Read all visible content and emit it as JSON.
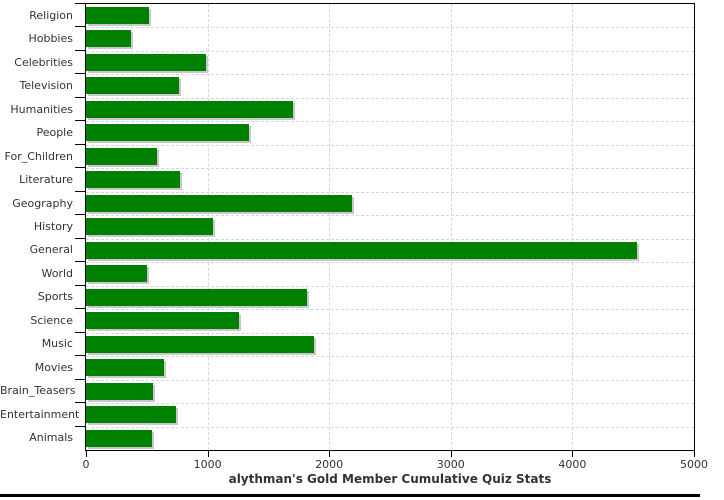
{
  "chart_data": {
    "type": "bar",
    "orientation": "horizontal",
    "title": "alythman's Gold Member Cumulative Quiz Stats",
    "categories": [
      "Religion",
      "Hobbies",
      "Celebrities",
      "Television",
      "Humanities",
      "People",
      "For_Children",
      "Literature",
      "Geography",
      "History",
      "General",
      "World",
      "Sports",
      "Science",
      "Music",
      "Movies",
      "Brain_Teasers",
      "Entertainment",
      "Animals"
    ],
    "values": [
      515,
      370,
      990,
      765,
      1705,
      1340,
      585,
      775,
      2190,
      1045,
      4530,
      500,
      1820,
      1260,
      1875,
      645,
      555,
      740,
      540
    ],
    "xlabel": "",
    "ylabel": "",
    "xlim": [
      0,
      5000
    ],
    "x_ticks": [
      "0",
      "1000",
      "2000",
      "3000",
      "4000",
      "5000"
    ],
    "grid": "dashed",
    "legend": "none",
    "colors": {
      "bar": "#008000",
      "bar_shadow": "#c9c9c9",
      "grid": "#d6d6dd",
      "axis": "#000000",
      "text": "#333333",
      "background": "#ffffff",
      "bottom_bar": "#000000"
    }
  }
}
